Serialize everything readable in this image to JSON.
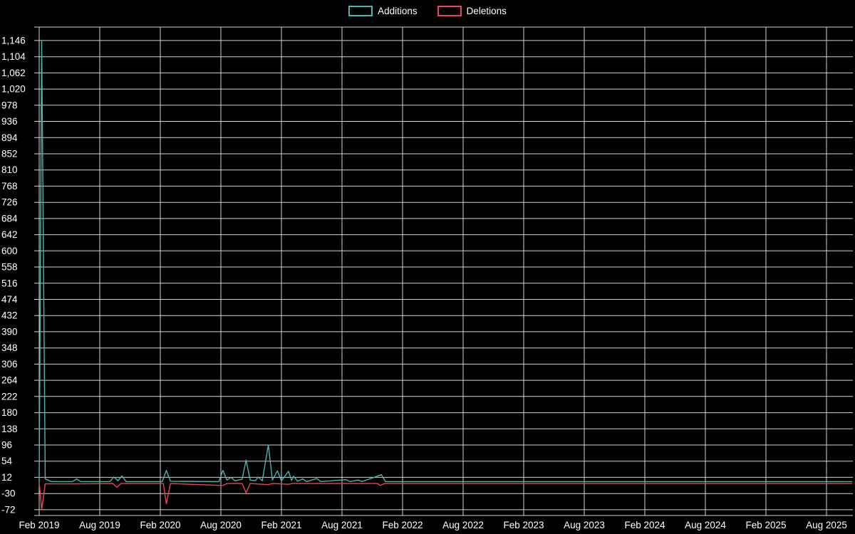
{
  "page": {
    "background": "#000000",
    "text_color": "#ffffff",
    "grid_color": "#d4d4d4"
  },
  "chart_data": {
    "type": "line",
    "title": "",
    "xlabel": "",
    "ylabel": "",
    "legend_position": "top-center",
    "grid": true,
    "x_unit": "months since Feb 2019",
    "x_tick_months": [
      0,
      6,
      12,
      18,
      24,
      30,
      36,
      42,
      48,
      54,
      60,
      66,
      72,
      78
    ],
    "x_tick_labels": [
      "Feb 2019",
      "Aug 2019",
      "Feb 2020",
      "Aug 2020",
      "Feb 2021",
      "Aug 2021",
      "Feb 2022",
      "Aug 2022",
      "Feb 2023",
      "Aug 2023",
      "Feb 2024",
      "Aug 2024",
      "Feb 2025",
      "Aug 2025"
    ],
    "y_ticks": [
      -72,
      -30,
      12,
      54,
      96,
      138,
      180,
      222,
      264,
      306,
      348,
      390,
      432,
      474,
      516,
      558,
      600,
      642,
      684,
      726,
      768,
      810,
      852,
      894,
      936,
      978,
      1020,
      1062,
      1104,
      1146
    ],
    "y_tick_labels": [
      "-72",
      "-30",
      "12",
      "54",
      "96",
      "138",
      "180",
      "222",
      "264",
      "306",
      "348",
      "390",
      "432",
      "474",
      "516",
      "558",
      "600",
      "642",
      "684",
      "726",
      "768",
      "810",
      "852",
      "894",
      "936",
      "978",
      "1,020",
      "1,062",
      "1,104",
      "1,146"
    ],
    "ylim": [
      -87,
      1181
    ],
    "xlim_months": [
      0,
      80.5
    ],
    "series": [
      {
        "name": "Additions",
        "color": "#4ab6ae",
        "points": [
          [
            0,
            0
          ],
          [
            0.25,
            1146
          ],
          [
            0.6,
            8
          ],
          [
            1.2,
            1
          ],
          [
            3.3,
            1
          ],
          [
            3.7,
            8
          ],
          [
            4.1,
            1
          ],
          [
            7.0,
            1
          ],
          [
            7.4,
            13
          ],
          [
            7.8,
            3
          ],
          [
            8.2,
            16
          ],
          [
            8.6,
            1
          ],
          [
            12.2,
            1
          ],
          [
            12.6,
            30
          ],
          [
            13.0,
            2
          ],
          [
            17.8,
            1
          ],
          [
            18.2,
            30
          ],
          [
            18.6,
            5
          ],
          [
            19.0,
            12
          ],
          [
            19.4,
            3
          ],
          [
            20.1,
            7
          ],
          [
            20.5,
            57
          ],
          [
            20.9,
            5
          ],
          [
            21.4,
            3
          ],
          [
            21.7,
            13
          ],
          [
            22.1,
            3
          ],
          [
            22.7,
            96
          ],
          [
            23.1,
            5
          ],
          [
            23.6,
            29
          ],
          [
            24.0,
            3
          ],
          [
            24.7,
            28
          ],
          [
            25.0,
            4
          ],
          [
            25.2,
            15
          ],
          [
            25.6,
            2
          ],
          [
            26.1,
            8
          ],
          [
            26.5,
            1
          ],
          [
            27.5,
            9
          ],
          [
            27.9,
            1
          ],
          [
            30.4,
            6
          ],
          [
            30.8,
            1
          ],
          [
            31.6,
            5
          ],
          [
            32.0,
            1
          ],
          [
            33.9,
            19
          ],
          [
            34.3,
            1
          ],
          [
            80.5,
            1
          ]
        ]
      },
      {
        "name": "Deletions",
        "color": "#ee4256",
        "points": [
          [
            0,
            0
          ],
          [
            0.25,
            -72
          ],
          [
            0.6,
            -5
          ],
          [
            3.7,
            -5
          ],
          [
            7.3,
            -4
          ],
          [
            7.7,
            -14
          ],
          [
            8.1,
            -4
          ],
          [
            12.3,
            -4
          ],
          [
            12.6,
            -57
          ],
          [
            13.0,
            -4
          ],
          [
            18.2,
            -9
          ],
          [
            18.6,
            -4
          ],
          [
            20.1,
            -4
          ],
          [
            20.5,
            -28
          ],
          [
            20.9,
            -4
          ],
          [
            22.7,
            -7
          ],
          [
            23.1,
            -4
          ],
          [
            24.7,
            -6
          ],
          [
            25.1,
            -4
          ],
          [
            33.5,
            -4
          ],
          [
            33.8,
            -9
          ],
          [
            34.2,
            -4
          ],
          [
            80.5,
            -4
          ]
        ]
      }
    ]
  }
}
